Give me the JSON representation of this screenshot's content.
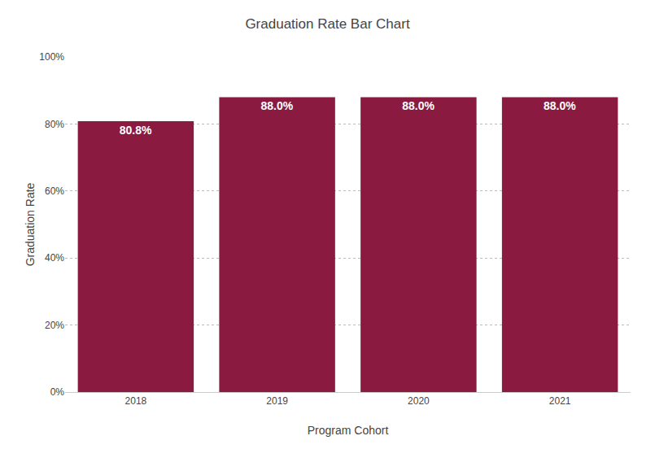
{
  "chart_data": {
    "type": "bar",
    "title": "Graduation Rate Bar Chart",
    "x_label": "Program Cohort",
    "y_label": "Graduation Rate",
    "categories": [
      "2018",
      "2019",
      "2020",
      "2021"
    ],
    "values": [
      80.8,
      88.0,
      88.0,
      88.0
    ],
    "value_labels": [
      "80.8%",
      "88.0%",
      "88.0%",
      "88.0%"
    ],
    "data_labels": true,
    "color": "#8B1A40",
    "ylim": [
      0,
      100
    ],
    "yticks": [
      {
        "value": 0,
        "label": "0%"
      },
      {
        "value": 20,
        "label": "20%"
      },
      {
        "value": 40,
        "label": "40%"
      },
      {
        "value": 60,
        "label": "60%"
      },
      {
        "value": 80,
        "label": "80%"
      },
      {
        "value": 100,
        "label": "100%"
      }
    ],
    "grid": true
  }
}
